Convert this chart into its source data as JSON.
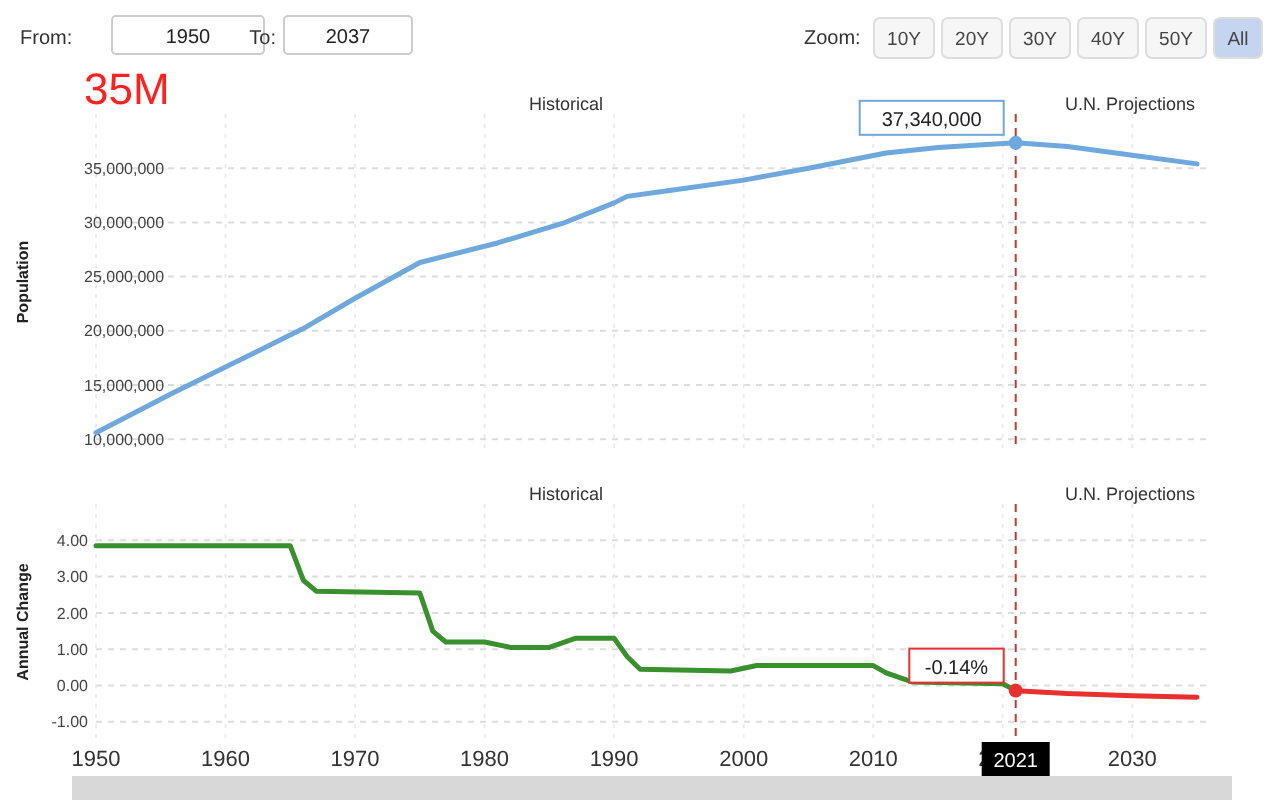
{
  "chart_data": [
    {
      "type": "line",
      "ylabel": "Population",
      "xlim": [
        1950,
        2036
      ],
      "xticks": [
        1950,
        1960,
        1970,
        1980,
        1990,
        2000,
        2010,
        2020,
        2030
      ],
      "ylim": [
        9000000,
        40000000
      ],
      "yticks": [
        {
          "value": 10000000,
          "label": "10,000,000"
        },
        {
          "value": 15000000,
          "label": "15,000,000"
        },
        {
          "value": 20000000,
          "label": "20,000,000"
        },
        {
          "value": 25000000,
          "label": "25,000,000"
        },
        {
          "value": 30000000,
          "label": "30,000,000"
        },
        {
          "value": 35000000,
          "label": "35,000,000"
        }
      ],
      "tick_labels": "y",
      "grid": true,
      "marker": "none",
      "series": [
        {
          "color": "#6fa8dc",
          "x": [
            1950,
            1956,
            1966,
            1970,
            1975,
            1981,
            1986,
            1990,
            1991,
            1994,
            2000,
            2005,
            2011,
            2015,
            2021,
            2025,
            2030,
            2035
          ],
          "values": [
            10600000,
            14300000,
            20200000,
            23000000,
            26300000,
            28100000,
            29900000,
            31800000,
            32400000,
            32900000,
            33900000,
            35000000,
            36400000,
            36900000,
            37340000,
            37000000,
            36200000,
            35400000
          ],
          "value_labels": [
            null,
            null,
            null,
            null,
            null,
            null,
            null,
            null,
            null,
            null,
            null,
            null,
            null,
            null,
            "37,340,000",
            null,
            null,
            null
          ]
        }
      ],
      "ref_lines": [
        {
          "axis": "x",
          "value": 2021,
          "color": "#c0392b",
          "line_style": "dashed"
        }
      ],
      "annotations": [
        "From:",
        "1950",
        "To:",
        "2037",
        "Zoom:",
        "10Y",
        "20Y",
        "30Y",
        "40Y",
        "50Y",
        "All",
        "35M",
        "Historical",
        "U.N. Projections"
      ]
    },
    {
      "type": "line",
      "ylabel": "Annual Change",
      "xlim": [
        1950,
        2036
      ],
      "xticks": [
        1950,
        1960,
        1970,
        1980,
        1990,
        2000,
        2010,
        2020,
        2030
      ],
      "ylim": [
        -1.5,
        5
      ],
      "yticks": [
        {
          "value": -1,
          "label": "-1.00"
        },
        {
          "value": 0,
          "label": "0.00"
        },
        {
          "value": 1,
          "label": "1.00"
        },
        {
          "value": 2,
          "label": "2.00"
        },
        {
          "value": 3,
          "label": "3.00"
        },
        {
          "value": 4,
          "label": "4.00"
        }
      ],
      "grid": true,
      "marker": "none",
      "series": [
        {
          "color": "#3a8f2e",
          "x": [
            1950,
            1965,
            1966,
            1967,
            1975,
            1976,
            1977,
            1980,
            1982,
            1985,
            1987,
            1990,
            1991,
            1992,
            1999,
            2001,
            2010,
            2011,
            2013,
            2020,
            2021
          ],
          "values": [
            3.85,
            3.85,
            2.9,
            2.6,
            2.55,
            1.5,
            1.2,
            1.2,
            1.05,
            1.05,
            1.3,
            1.3,
            0.8,
            0.45,
            0.4,
            0.55,
            0.55,
            0.35,
            0.1,
            0.05,
            -0.14
          ]
        },
        {
          "color": "#e8312f",
          "x": [
            2021,
            2025,
            2030,
            2035
          ],
          "values": [
            -0.14,
            -0.22,
            -0.28,
            -0.32
          ],
          "value_labels": [
            "-0.14%",
            null,
            null,
            null
          ]
        }
      ],
      "ref_lines": [
        {
          "axis": "x",
          "value": 2021,
          "color": "#c0392b",
          "line_style": "dashed"
        }
      ],
      "annotations": [
        "Historical",
        "U.N. Projections",
        "2021"
      ]
    }
  ]
}
